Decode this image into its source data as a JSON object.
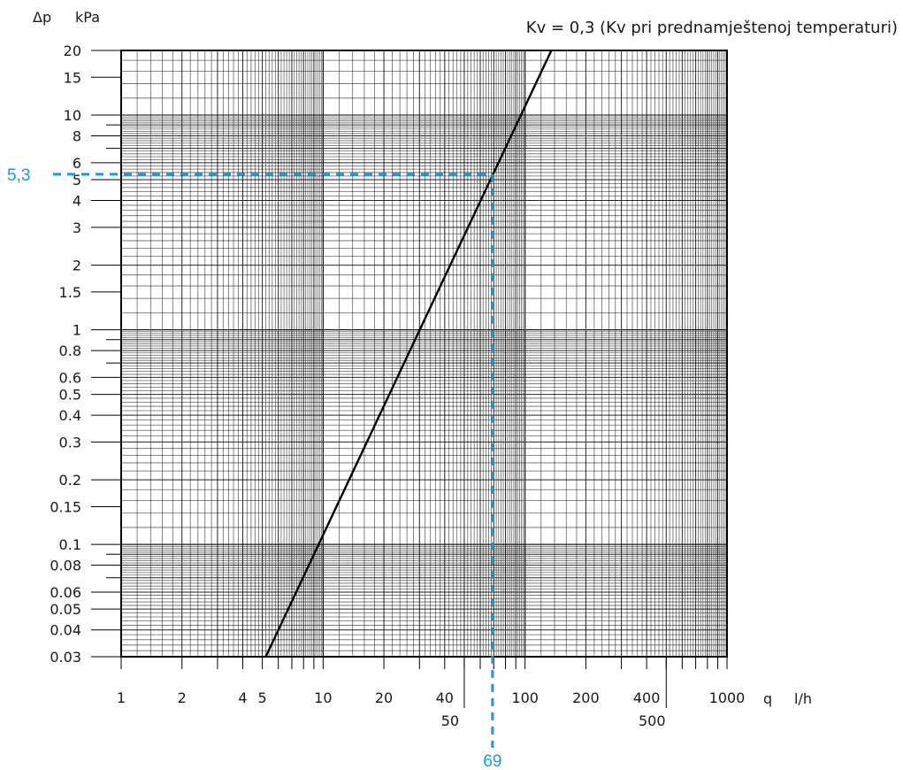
{
  "chart_data": {
    "type": "line",
    "title": "Kv = 0,3 (Kv pri prednamještenoj temperaturi)",
    "ylabel_symbol": "Δp",
    "ylabel_unit": "kPa",
    "xlabel_symbol": "q",
    "xlabel_unit": "l/h",
    "x_scale": "log",
    "y_scale": "log",
    "xlim": [
      1,
      1000
    ],
    "ylim": [
      0.03,
      20
    ],
    "grid": true,
    "x_ticks_upper": [
      "1",
      "2",
      "4",
      "5",
      "10",
      "20",
      "40",
      "100",
      "200",
      "400",
      "1000"
    ],
    "x_ticks_lower": [
      "50",
      "500"
    ],
    "y_ticks": [
      "20",
      "15",
      "10",
      "8",
      "6",
      "5",
      "4",
      "3",
      "2",
      "1.5",
      "1",
      "0.8",
      "0.6",
      "0.5",
      "0.4",
      "0.3",
      "0.2",
      "0.15",
      "0.1",
      "0.08",
      "0.06",
      "0.05",
      "0.04",
      "0.03"
    ],
    "series": [
      {
        "x": [
          5.2,
          135
        ],
        "y": [
          0.03,
          20
        ]
      }
    ],
    "highlight": {
      "x": 69,
      "y": 5.3,
      "x_label": "69",
      "y_label": "5,3",
      "color": "#1a9ad6"
    }
  }
}
